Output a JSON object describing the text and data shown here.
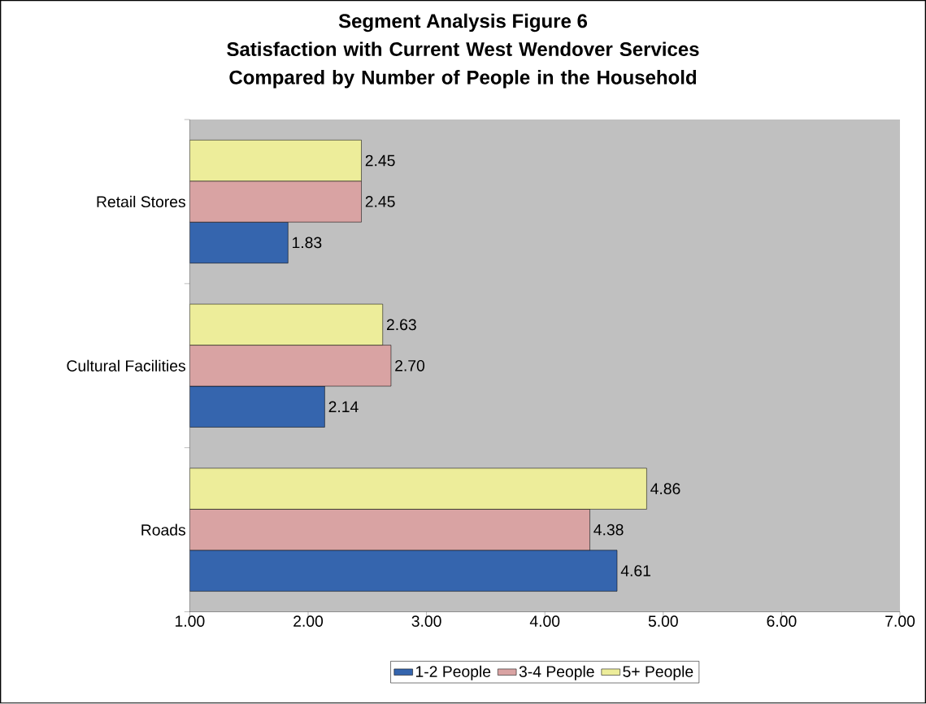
{
  "chart_data": {
    "type": "bar",
    "orientation": "horizontal",
    "title": "Segment Analysis Figure 6",
    "subtitle": "Satisfaction with Current West Wendover Services Compared by Number of People in the Household",
    "categories": [
      "Retail Stores",
      "Cultural Facilities",
      "Roads"
    ],
    "series": [
      {
        "name": "1-2 People",
        "color": "#3565ae",
        "values": [
          1.83,
          2.14,
          4.61
        ],
        "value_labels": [
          "1.83",
          "2.14",
          "4.61"
        ]
      },
      {
        "name": "3-4 People",
        "color": "#d9a3a3",
        "values": [
          2.45,
          2.7,
          4.38
        ],
        "value_labels": [
          "2.45",
          "2.70",
          "4.38"
        ]
      },
      {
        "name": "5+ People",
        "color": "#eded9a",
        "values": [
          2.45,
          2.63,
          4.86
        ],
        "value_labels": [
          "2.45",
          "2.63",
          "4.86"
        ]
      }
    ],
    "xlim": [
      1,
      7
    ],
    "xticks": [
      {
        "value": 1,
        "label": "1.00"
      },
      {
        "value": 2,
        "label": "2.00"
      },
      {
        "value": 3,
        "label": "3.00"
      },
      {
        "value": 4,
        "label": "4.00"
      },
      {
        "value": 5,
        "label": "5.00"
      },
      {
        "value": 6,
        "label": "6.00"
      },
      {
        "value": 7,
        "label": "7.00"
      }
    ],
    "grid": false,
    "legend": "bottom"
  }
}
